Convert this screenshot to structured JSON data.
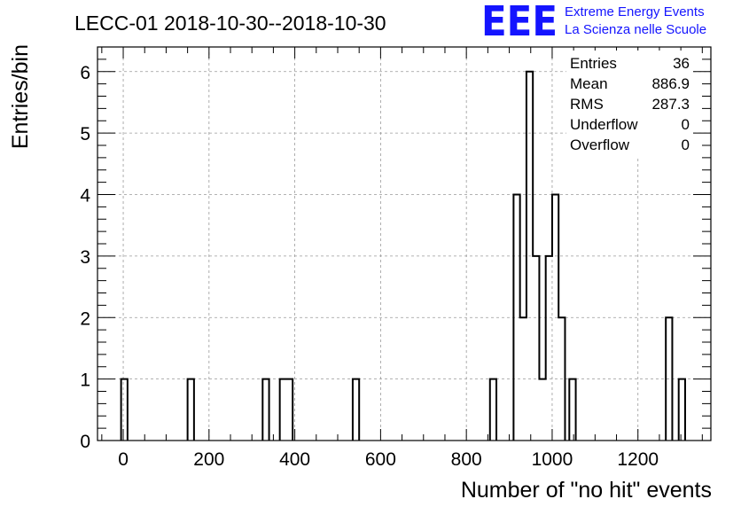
{
  "chart_data": {
    "type": "histogram",
    "title": "LECC-01 2018-10-30--2018-10-30",
    "xlabel": "Number of \"no hit\" events",
    "ylabel": "Entries/bin",
    "xlim": [
      -60,
      1370
    ],
    "ylim": [
      0,
      6.4
    ],
    "x_ticks": [
      "0",
      "200",
      "400",
      "600",
      "800",
      "1000",
      "1200"
    ],
    "x_tick_values": [
      0,
      200,
      400,
      600,
      800,
      1000,
      1200
    ],
    "y_ticks": [
      "0",
      "1",
      "2",
      "3",
      "4",
      "5",
      "6"
    ],
    "y_tick_values": [
      0,
      1,
      2,
      3,
      4,
      5,
      6
    ],
    "grid": true,
    "bin_width": 15,
    "bins": [
      {
        "x_low": -5,
        "x_high": 10,
        "count": 1
      },
      {
        "x_low": 150,
        "x_high": 165,
        "count": 1
      },
      {
        "x_low": 325,
        "x_high": 340,
        "count": 1
      },
      {
        "x_low": 365,
        "x_high": 380,
        "count": 1
      },
      {
        "x_low": 380,
        "x_high": 395,
        "count": 1
      },
      {
        "x_low": 535,
        "x_high": 550,
        "count": 1
      },
      {
        "x_low": 855,
        "x_high": 870,
        "count": 1
      },
      {
        "x_low": 910,
        "x_high": 925,
        "count": 4
      },
      {
        "x_low": 925,
        "x_high": 940,
        "count": 2
      },
      {
        "x_low": 940,
        "x_high": 955,
        "count": 6
      },
      {
        "x_low": 955,
        "x_high": 970,
        "count": 3
      },
      {
        "x_low": 970,
        "x_high": 985,
        "count": 1
      },
      {
        "x_low": 985,
        "x_high": 1000,
        "count": 3
      },
      {
        "x_low": 1000,
        "x_high": 1015,
        "count": 4
      },
      {
        "x_low": 1015,
        "x_high": 1030,
        "count": 2
      },
      {
        "x_low": 1040,
        "x_high": 1055,
        "count": 1
      },
      {
        "x_low": 1265,
        "x_high": 1280,
        "count": 2
      },
      {
        "x_low": 1295,
        "x_high": 1310,
        "count": 1
      }
    ],
    "stats": [
      {
        "label": "Entries",
        "value": "36"
      },
      {
        "label": "Mean",
        "value": "886.9"
      },
      {
        "label": "RMS",
        "value": "287.3"
      },
      {
        "label": "Underflow",
        "value": "0"
      },
      {
        "label": "Overflow",
        "value": "0"
      }
    ]
  },
  "logo": {
    "mark": "EEE",
    "line1": "Extreme Energy Events",
    "line2": "La Scienza nelle Scuole",
    "color": "#1414ff"
  }
}
